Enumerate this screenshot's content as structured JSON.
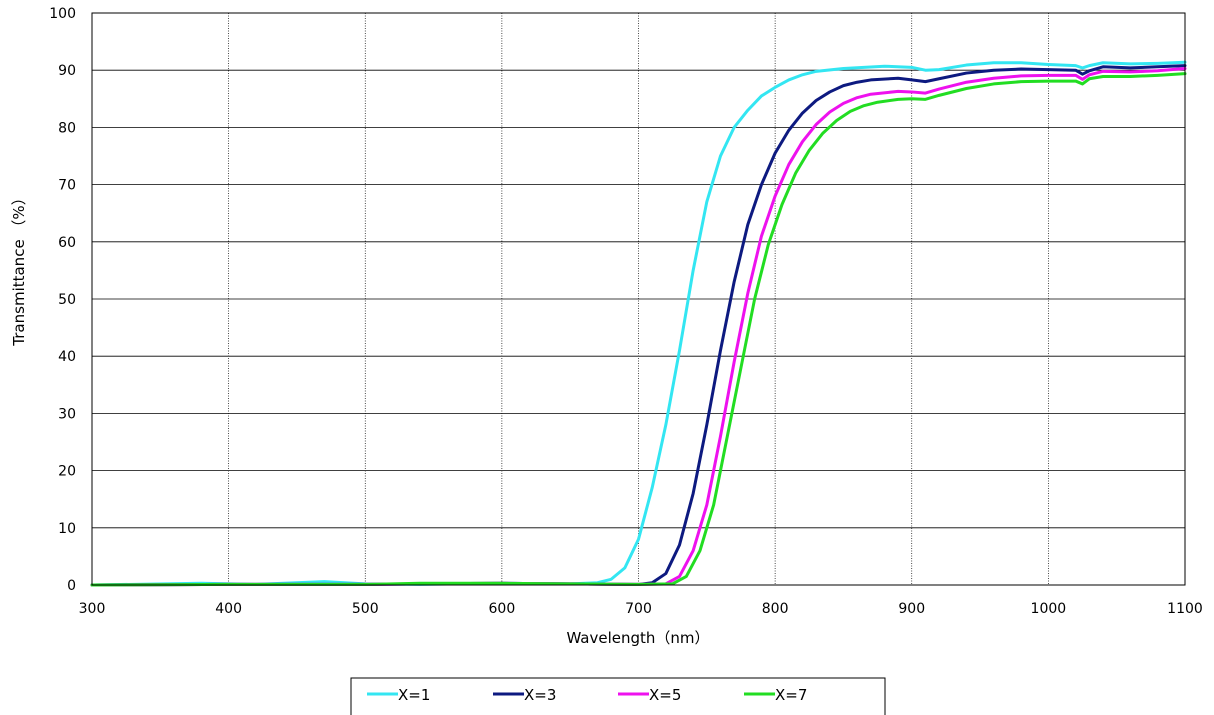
{
  "chart_data": {
    "type": "line",
    "title": "",
    "xlabel": "Wavelength（nm）",
    "ylabel": "Transmittance （%）",
    "xlim": [
      300,
      1100
    ],
    "ylim": [
      0,
      100
    ],
    "x_ticks": [
      300,
      400,
      500,
      600,
      700,
      800,
      900,
      1000,
      1100
    ],
    "y_ticks": [
      0,
      10,
      20,
      30,
      40,
      50,
      60,
      70,
      80,
      90,
      100
    ],
    "grid": {
      "vertical": "dotted",
      "horizontal": "solid"
    },
    "legend_position": "bottom",
    "series": [
      {
        "name": "X=1",
        "color": "#33e6f2",
        "points": [
          [
            300,
            0
          ],
          [
            380,
            0.3
          ],
          [
            420,
            0.1
          ],
          [
            470,
            0.6
          ],
          [
            500,
            0.2
          ],
          [
            540,
            0.1
          ],
          [
            600,
            0.3
          ],
          [
            650,
            0.2
          ],
          [
            670,
            0.4
          ],
          [
            680,
            1
          ],
          [
            690,
            3
          ],
          [
            700,
            8
          ],
          [
            710,
            17
          ],
          [
            720,
            28
          ],
          [
            730,
            41
          ],
          [
            740,
            55
          ],
          [
            750,
            67
          ],
          [
            760,
            75
          ],
          [
            770,
            80
          ],
          [
            780,
            83
          ],
          [
            790,
            85.5
          ],
          [
            800,
            87
          ],
          [
            810,
            88.3
          ],
          [
            820,
            89.2
          ],
          [
            830,
            89.8
          ],
          [
            850,
            90.3
          ],
          [
            880,
            90.7
          ],
          [
            900,
            90.5
          ],
          [
            910,
            90.0
          ],
          [
            920,
            90.1
          ],
          [
            940,
            90.9
          ],
          [
            960,
            91.3
          ],
          [
            980,
            91.3
          ],
          [
            1000,
            91.0
          ],
          [
            1020,
            90.8
          ],
          [
            1025,
            90.4
          ],
          [
            1030,
            90.8
          ],
          [
            1040,
            91.3
          ],
          [
            1060,
            91.1
          ],
          [
            1080,
            91.2
          ],
          [
            1100,
            91.4
          ]
        ]
      },
      {
        "name": "X=3",
        "color": "#0d1a80",
        "points": [
          [
            300,
            0
          ],
          [
            400,
            0.1
          ],
          [
            500,
            0.1
          ],
          [
            540,
            0.2
          ],
          [
            600,
            0.3
          ],
          [
            650,
            0.2
          ],
          [
            700,
            0.1
          ],
          [
            710,
            0.4
          ],
          [
            720,
            2
          ],
          [
            730,
            7
          ],
          [
            740,
            16
          ],
          [
            750,
            28
          ],
          [
            760,
            41
          ],
          [
            770,
            53
          ],
          [
            780,
            63
          ],
          [
            790,
            70
          ],
          [
            800,
            75.5
          ],
          [
            810,
            79.5
          ],
          [
            820,
            82.5
          ],
          [
            830,
            84.7
          ],
          [
            840,
            86.2
          ],
          [
            850,
            87.3
          ],
          [
            860,
            87.9
          ],
          [
            870,
            88.3
          ],
          [
            890,
            88.6
          ],
          [
            900,
            88.3
          ],
          [
            910,
            88.0
          ],
          [
            920,
            88.5
          ],
          [
            940,
            89.5
          ],
          [
            960,
            90.0
          ],
          [
            980,
            90.2
          ],
          [
            1000,
            90.1
          ],
          [
            1020,
            90.0
          ],
          [
            1025,
            89.3
          ],
          [
            1030,
            89.9
          ],
          [
            1040,
            90.6
          ],
          [
            1060,
            90.4
          ],
          [
            1080,
            90.6
          ],
          [
            1100,
            90.8
          ]
        ]
      },
      {
        "name": "X=5",
        "color": "#ee11ee",
        "points": [
          [
            300,
            0
          ],
          [
            400,
            0.1
          ],
          [
            500,
            0.1
          ],
          [
            540,
            0.2
          ],
          [
            600,
            0.3
          ],
          [
            650,
            0.2
          ],
          [
            700,
            0.1
          ],
          [
            720,
            0.2
          ],
          [
            730,
            1.5
          ],
          [
            740,
            6
          ],
          [
            750,
            14
          ],
          [
            760,
            26
          ],
          [
            770,
            39
          ],
          [
            780,
            51
          ],
          [
            790,
            61
          ],
          [
            800,
            68
          ],
          [
            810,
            73.5
          ],
          [
            820,
            77.5
          ],
          [
            830,
            80.5
          ],
          [
            840,
            82.7
          ],
          [
            850,
            84.2
          ],
          [
            860,
            85.2
          ],
          [
            870,
            85.8
          ],
          [
            890,
            86.3
          ],
          [
            900,
            86.2
          ],
          [
            910,
            86.0
          ],
          [
            920,
            86.7
          ],
          [
            940,
            87.9
          ],
          [
            960,
            88.6
          ],
          [
            980,
            89.0
          ],
          [
            1000,
            89.1
          ],
          [
            1020,
            89.1
          ],
          [
            1025,
            88.4
          ],
          [
            1030,
            89.2
          ],
          [
            1040,
            89.8
          ],
          [
            1060,
            89.7
          ],
          [
            1080,
            89.9
          ],
          [
            1100,
            90.3
          ]
        ]
      },
      {
        "name": "X=7",
        "color": "#22dd22",
        "points": [
          [
            300,
            0
          ],
          [
            400,
            0.1
          ],
          [
            500,
            0.1
          ],
          [
            540,
            0.3
          ],
          [
            600,
            0.3
          ],
          [
            650,
            0.2
          ],
          [
            700,
            0.1
          ],
          [
            725,
            0.2
          ],
          [
            735,
            1.5
          ],
          [
            745,
            6
          ],
          [
            755,
            14
          ],
          [
            765,
            26
          ],
          [
            775,
            38
          ],
          [
            785,
            50
          ],
          [
            795,
            59.5
          ],
          [
            805,
            66.5
          ],
          [
            815,
            72
          ],
          [
            825,
            76
          ],
          [
            835,
            79
          ],
          [
            845,
            81.2
          ],
          [
            855,
            82.8
          ],
          [
            865,
            83.8
          ],
          [
            875,
            84.4
          ],
          [
            890,
            84.9
          ],
          [
            900,
            85.0
          ],
          [
            910,
            84.9
          ],
          [
            920,
            85.6
          ],
          [
            940,
            86.8
          ],
          [
            960,
            87.6
          ],
          [
            980,
            88.0
          ],
          [
            1000,
            88.1
          ],
          [
            1020,
            88.1
          ],
          [
            1025,
            87.6
          ],
          [
            1030,
            88.5
          ],
          [
            1040,
            88.9
          ],
          [
            1060,
            88.9
          ],
          [
            1080,
            89.1
          ],
          [
            1100,
            89.4
          ]
        ]
      }
    ]
  }
}
